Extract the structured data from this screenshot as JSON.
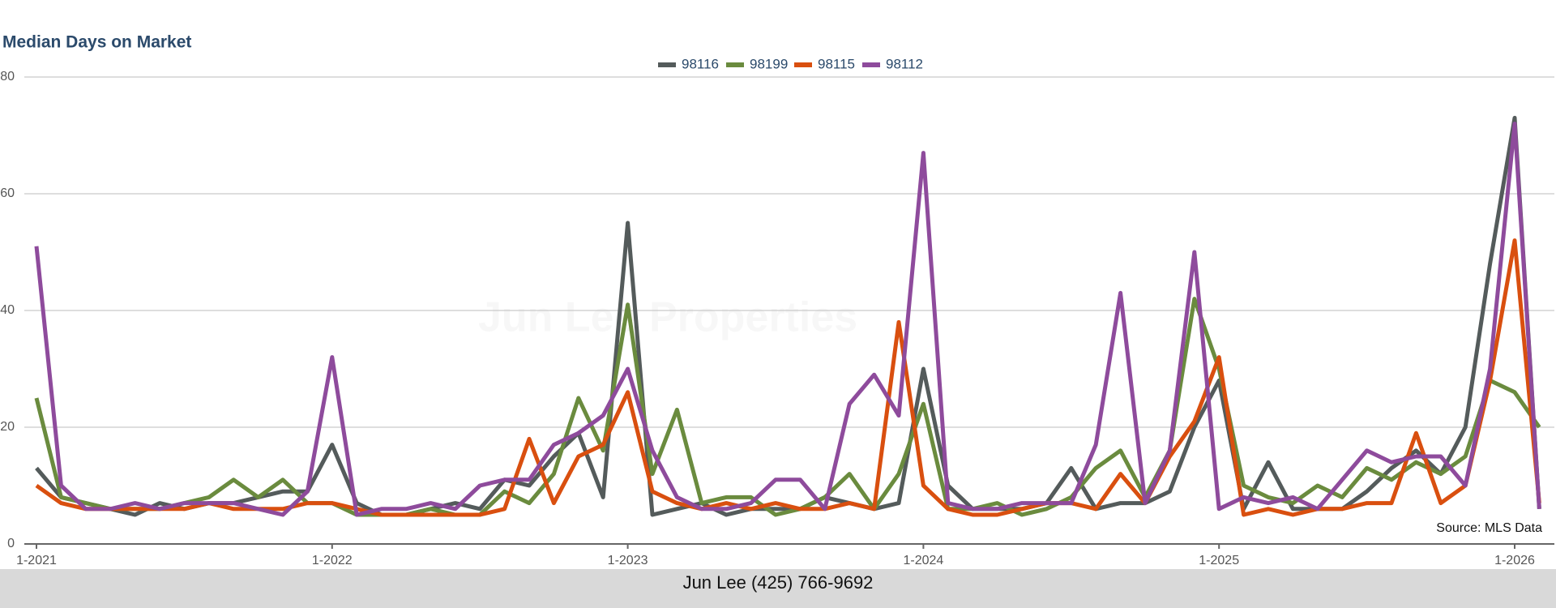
{
  "chart_data": {
    "type": "line",
    "title": "Median Days on Market",
    "watermark": "Jun Lee Properties",
    "annotation": "Source: MLS Data",
    "footer": "Jun Lee (425) 766-9692",
    "categories": [
      "1-2021",
      null,
      null,
      null,
      null,
      null,
      null,
      null,
      null,
      null,
      null,
      null,
      "1-2022",
      null,
      null,
      null,
      null,
      null,
      null,
      null,
      null,
      null,
      null,
      null,
      "1-2023",
      null,
      null,
      null,
      null,
      null,
      null,
      null,
      null,
      null,
      null,
      null,
      "1-2024",
      null,
      null,
      null,
      null,
      null,
      null,
      null,
      null,
      null,
      null,
      null,
      "1-2025",
      null,
      null,
      null,
      null,
      null,
      null,
      null,
      null,
      null,
      null,
      null,
      "1-2026",
      null
    ],
    "ylim": [
      0,
      80
    ],
    "yticks": [
      0,
      20,
      40,
      60,
      80
    ],
    "grid": true,
    "legend": "top",
    "series": [
      {
        "name": "98116",
        "color": "#545b5b",
        "values": [
          13,
          8,
          7,
          6,
          5,
          7,
          6,
          7,
          7,
          8,
          9,
          9,
          17,
          7,
          5,
          5,
          6,
          7,
          6,
          11,
          10,
          15,
          19,
          8,
          55,
          5,
          6,
          7,
          5,
          6,
          6,
          6,
          8,
          7,
          6,
          7,
          30,
          10,
          6,
          6,
          6,
          7,
          13,
          6,
          7,
          7,
          9,
          20,
          28,
          6,
          14,
          6,
          6,
          6,
          9,
          13,
          16,
          12,
          20,
          48,
          73,
          6
        ]
      },
      {
        "name": "98199",
        "color": "#6a8b3e",
        "values": [
          25,
          8,
          7,
          6,
          6,
          6,
          7,
          8,
          11,
          8,
          11,
          7,
          7,
          5,
          5,
          5,
          6,
          5,
          5,
          9,
          7,
          12,
          25,
          16,
          41,
          12,
          23,
          7,
          8,
          8,
          5,
          6,
          8,
          12,
          6,
          12,
          24,
          6,
          6,
          7,
          5,
          6,
          8,
          13,
          16,
          8,
          16,
          42,
          30,
          10,
          8,
          7,
          10,
          8,
          13,
          11,
          14,
          12,
          15,
          28,
          26,
          20
        ]
      },
      {
        "name": "98115",
        "color": "#d94f0f",
        "values": [
          10,
          7,
          6,
          6,
          6,
          6,
          6,
          7,
          6,
          6,
          6,
          7,
          7,
          6,
          5,
          5,
          5,
          5,
          5,
          6,
          18,
          7,
          15,
          17,
          26,
          9,
          7,
          6,
          7,
          6,
          7,
          6,
          6,
          7,
          6,
          38,
          10,
          6,
          5,
          5,
          6,
          7,
          7,
          6,
          12,
          7,
          15,
          21,
          32,
          5,
          6,
          5,
          6,
          6,
          7,
          7,
          19,
          7,
          10,
          28,
          52,
          7
        ]
      },
      {
        "name": "98112",
        "color": "#8e4b9c",
        "values": [
          51,
          10,
          6,
          6,
          7,
          6,
          7,
          7,
          7,
          6,
          5,
          9,
          32,
          5,
          6,
          6,
          7,
          6,
          10,
          11,
          11,
          17,
          19,
          22,
          30,
          16,
          8,
          6,
          6,
          7,
          11,
          11,
          6,
          24,
          29,
          22,
          67,
          7,
          6,
          6,
          7,
          7,
          7,
          17,
          43,
          7,
          16,
          50,
          6,
          8,
          7,
          8,
          6,
          11,
          16,
          14,
          15,
          15,
          10,
          30,
          72,
          6
        ]
      }
    ]
  }
}
